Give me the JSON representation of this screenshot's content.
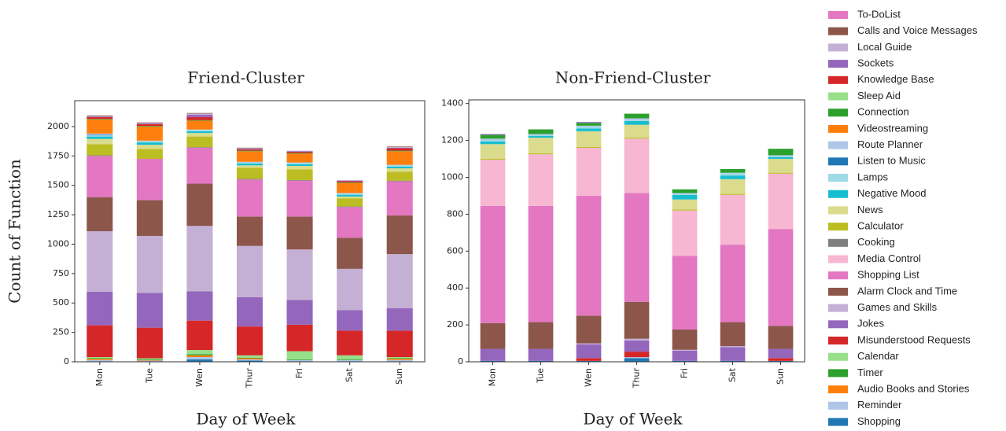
{
  "chart_data": [
    {
      "type": "bar",
      "stacked": true,
      "title": "Friend-Cluster",
      "xlabel": "Day of Week",
      "ylabel": "Count of Function",
      "categories": [
        "Mon",
        "Tue",
        "Wen",
        "Thur",
        "Fri",
        "Sat",
        "Sun"
      ],
      "ylim": [
        0,
        2220
      ],
      "yticks": [
        0,
        250,
        500,
        750,
        1000,
        1250,
        1500,
        1750,
        2000
      ],
      "series": [
        {
          "name": "To-DoList",
          "color": "#e377c2",
          "values": [
            0,
            0,
            0,
            0,
            0,
            0,
            0
          ]
        },
        {
          "name": "Calls and Voice Messages",
          "color": "#8c564b",
          "values": [
            5,
            5,
            5,
            5,
            0,
            0,
            5
          ]
        },
        {
          "name": "Local Guide",
          "color": "#c5b0d5",
          "values": [
            5,
            5,
            10,
            5,
            5,
            5,
            5
          ]
        },
        {
          "name": "Sockets",
          "color": "#9467bd",
          "values": [
            5,
            5,
            20,
            5,
            5,
            5,
            5
          ]
        },
        {
          "name": "Knowledge Base",
          "color": "#d62728",
          "values": [
            15,
            15,
            25,
            10,
            10,
            10,
            20
          ]
        },
        {
          "name": "Sleep Aid",
          "color": "#98df8a",
          "values": [
            0,
            0,
            0,
            0,
            0,
            0,
            0
          ]
        },
        {
          "name": "Connection",
          "color": "#2ca02c",
          "values": [
            5,
            5,
            5,
            5,
            5,
            5,
            5
          ]
        },
        {
          "name": "Videostreaming",
          "color": "#ff7f0e",
          "values": [
            120,
            120,
            75,
            90,
            75,
            85,
            115
          ]
        },
        {
          "name": "Route Planner",
          "color": "#aec7e8",
          "values": [
            10,
            5,
            5,
            5,
            5,
            5,
            5
          ]
        },
        {
          "name": "Listen to Music",
          "color": "#1f77b4",
          "values": [
            5,
            0,
            0,
            0,
            0,
            0,
            0
          ]
        },
        {
          "name": "Lamps",
          "color": "#9edae5",
          "values": [
            10,
            10,
            10,
            10,
            10,
            10,
            10
          ]
        },
        {
          "name": "Negative Mood",
          "color": "#17becf",
          "values": [
            20,
            20,
            15,
            15,
            15,
            15,
            15
          ]
        },
        {
          "name": "News",
          "color": "#dbdb8d",
          "values": [
            45,
            35,
            30,
            20,
            30,
            15,
            30
          ]
        },
        {
          "name": "Calculator",
          "color": "#bcbd22",
          "values": [
            95,
            85,
            90,
            95,
            90,
            70,
            75
          ]
        },
        {
          "name": "Cooking",
          "color": "#7f7f7f",
          "values": [
            5,
            0,
            5,
            5,
            5,
            5,
            5
          ]
        },
        {
          "name": "Media Control",
          "color": "#f7b6d2",
          "values": [
            0,
            0,
            0,
            0,
            0,
            0,
            0
          ]
        },
        {
          "name": "Shopping List",
          "color": "#e377c2",
          "values": [
            350,
            350,
            305,
            315,
            305,
            260,
            290
          ]
        },
        {
          "name": "Alarm Clock and Time",
          "color": "#8c564b",
          "values": [
            290,
            305,
            360,
            250,
            280,
            265,
            330
          ]
        },
        {
          "name": "Games and Skills",
          "color": "#c5b0d5",
          "values": [
            515,
            485,
            555,
            435,
            430,
            350,
            460
          ]
        },
        {
          "name": "Jokes",
          "color": "#9467bd",
          "values": [
            285,
            295,
            250,
            250,
            210,
            175,
            190
          ]
        },
        {
          "name": "Misunderstood Requests",
          "color": "#d62728",
          "values": [
            270,
            260,
            250,
            245,
            225,
            210,
            225
          ]
        },
        {
          "name": "Calendar",
          "color": "#98df8a",
          "values": [
            10,
            10,
            35,
            20,
            70,
            35,
            10
          ]
        },
        {
          "name": "Timer",
          "color": "#2ca02c",
          "values": [
            5,
            5,
            10,
            5,
            5,
            5,
            5
          ]
        },
        {
          "name": "Audio Books and Stories",
          "color": "#ff7f0e",
          "values": [
            10,
            5,
            15,
            10,
            0,
            0,
            10
          ]
        },
        {
          "name": "Reminder",
          "color": "#aec7e8",
          "values": [
            10,
            5,
            20,
            10,
            10,
            10,
            10
          ]
        },
        {
          "name": "Shopping",
          "color": "#1f77b4",
          "values": [
            5,
            5,
            20,
            10,
            5,
            5,
            5
          ]
        }
      ]
    },
    {
      "type": "bar",
      "stacked": true,
      "title": "Non-Friend-Cluster",
      "xlabel": "Day of Week",
      "categories": [
        "Mon",
        "Tue",
        "Wen",
        "Thur",
        "Fri",
        "Sat",
        "Sun"
      ],
      "ylim": [
        0,
        1420
      ],
      "yticks": [
        0,
        200,
        400,
        600,
        800,
        1000,
        1200,
        1400
      ],
      "series": [
        {
          "values": [
            0,
            0,
            0,
            0,
            0,
            0,
            0
          ]
        },
        {
          "values": [
            0,
            0,
            0,
            0,
            0,
            0,
            0
          ]
        },
        {
          "values": [
            0,
            0,
            0,
            0,
            0,
            0,
            0
          ]
        },
        {
          "values": [
            5,
            0,
            5,
            0,
            0,
            0,
            0
          ]
        },
        {
          "values": [
            0,
            0,
            0,
            0,
            0,
            0,
            0
          ]
        },
        {
          "values": [
            0,
            0,
            0,
            0,
            0,
            0,
            0
          ]
        },
        {
          "values": [
            20,
            25,
            15,
            25,
            20,
            20,
            35
          ]
        },
        {
          "values": [
            0,
            0,
            0,
            0,
            0,
            0,
            0
          ]
        },
        {
          "values": [
            10,
            5,
            5,
            10,
            5,
            5,
            5
          ]
        },
        {
          "values": [
            0,
            0,
            0,
            0,
            0,
            0,
            0
          ]
        },
        {
          "values": [
            5,
            5,
            10,
            5,
            5,
            10,
            5
          ]
        },
        {
          "values": [
            15,
            10,
            15,
            20,
            25,
            20,
            10
          ]
        },
        {
          "values": [
            80,
            85,
            85,
            70,
            55,
            80,
            75
          ]
        },
        {
          "values": [
            5,
            5,
            5,
            5,
            5,
            5,
            5
          ]
        },
        {
          "values": [
            0,
            0,
            0,
            0,
            0,
            0,
            0
          ]
        },
        {
          "values": [
            250,
            280,
            260,
            295,
            245,
            270,
            300
          ]
        },
        {
          "values": [
            635,
            630,
            650,
            590,
            400,
            420,
            525
          ]
        },
        {
          "values": [
            140,
            145,
            150,
            200,
            110,
            130,
            125
          ]
        },
        {
          "values": [
            0,
            0,
            5,
            10,
            5,
            5,
            0
          ]
        },
        {
          "values": [
            65,
            65,
            75,
            60,
            55,
            75,
            50
          ]
        },
        {
          "values": [
            0,
            0,
            15,
            30,
            0,
            0,
            15
          ]
        },
        {
          "values": [
            0,
            0,
            0,
            0,
            0,
            0,
            0
          ]
        },
        {
          "values": [
            0,
            0,
            0,
            0,
            0,
            0,
            0
          ]
        },
        {
          "values": [
            0,
            0,
            0,
            0,
            0,
            0,
            0
          ]
        },
        {
          "values": [
            0,
            0,
            0,
            5,
            0,
            0,
            0
          ]
        },
        {
          "values": [
            5,
            5,
            5,
            20,
            5,
            5,
            5
          ]
        }
      ]
    }
  ]
}
